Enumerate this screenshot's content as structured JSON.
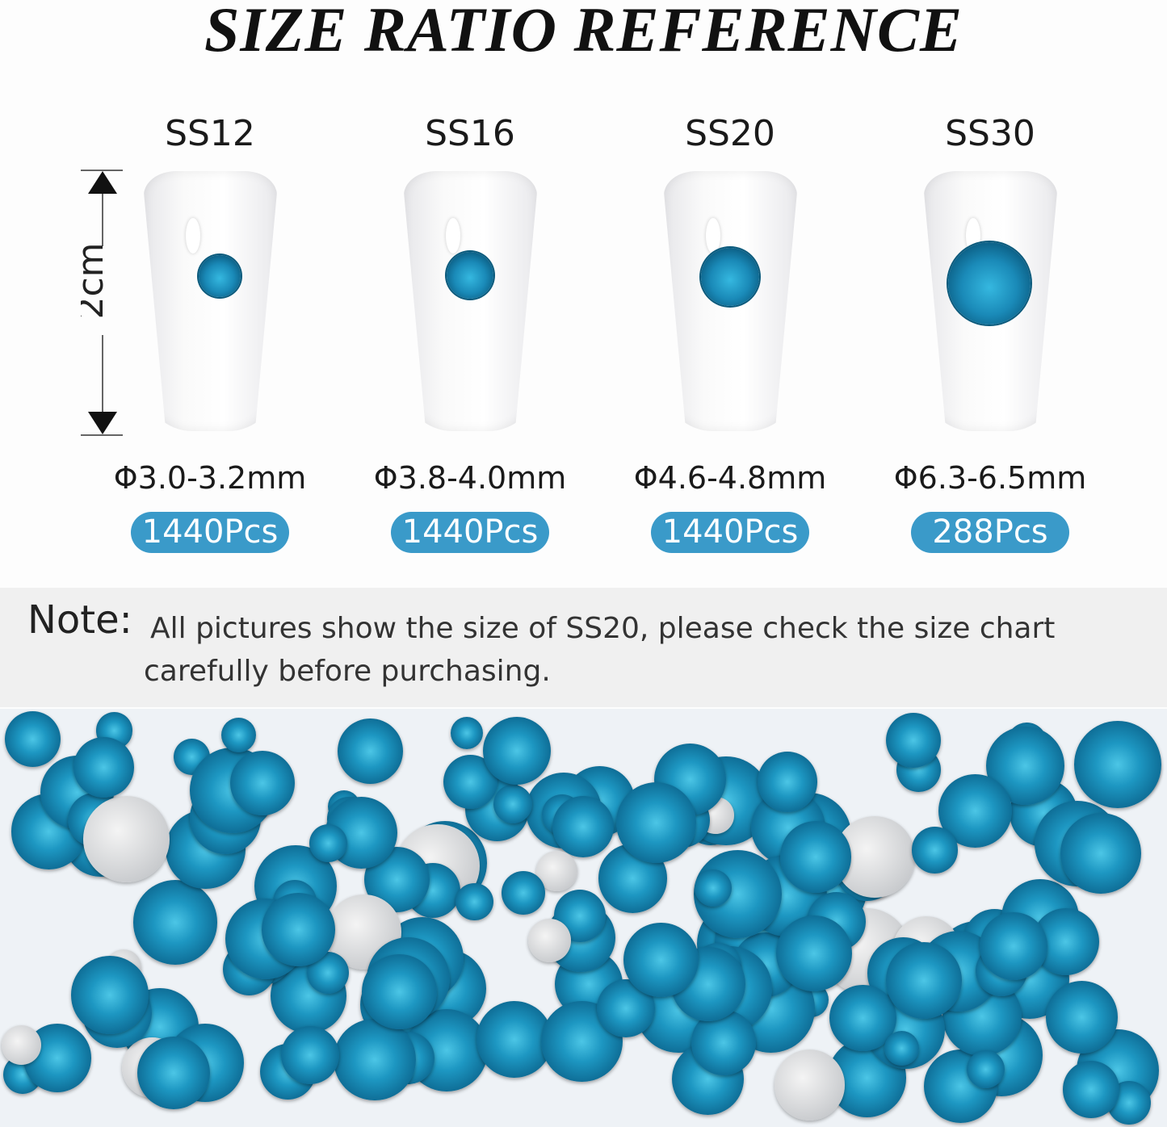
{
  "title": "SIZE RATIO REFERENCE",
  "ruler": {
    "label": "2cm"
  },
  "sizes": [
    {
      "name": "SS12",
      "diameter": "Φ3.0-3.2mm",
      "count": "1440Pcs"
    },
    {
      "name": "SS16",
      "diameter": "Φ3.8-4.0mm",
      "count": "1440Pcs"
    },
    {
      "name": "SS20",
      "diameter": "Φ4.6-4.8mm",
      "count": "1440Pcs"
    },
    {
      "name": "SS30",
      "diameter": "Φ6.3-6.5mm",
      "count": "288Pcs"
    }
  ],
  "note": {
    "label": "Note:",
    "text": "All pictures show the size of SS20, please check the size chart carefully before purchasing."
  },
  "colors": {
    "accent": "#3a9ac9",
    "gem": "#1a8ab8",
    "note_band": "#f0f0f0"
  }
}
